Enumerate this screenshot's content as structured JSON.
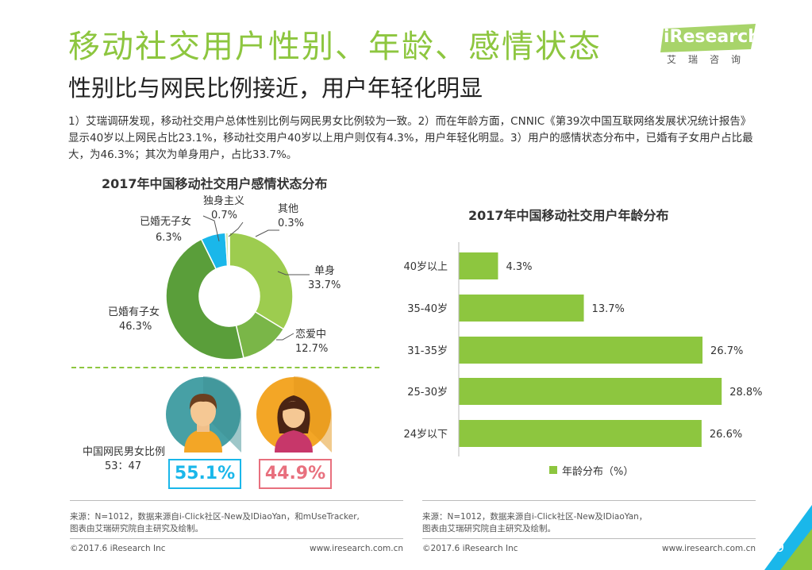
{
  "header": {
    "title": "移动社交用户性别、年龄、感情状态",
    "subtitle": "性别比与网民比例接近，用户年轻化明显",
    "intro": "1）艾瑞调研发现，移动社交用户总体性别比例与网民男女比例较为一致。2）而在年龄方面，CNNIC《第39次中国互联网络发展状况统计报告》显示40岁以上网民占比23.1%，移动社交用户40岁以上用户则仅有4.3%，用户年轻化明显。3）用户的感情状态分布中，已婚有子女用户占比最大，为46.3%；其次为单身用户，占比33.7%。"
  },
  "logo": {
    "text": "iResearch",
    "cn": "艾瑞咨询"
  },
  "gender": {
    "label": "中国网民男女比例",
    "ratio": "53：47",
    "male_pct": "55.1%",
    "female_pct": "44.9%",
    "male_color": "#1ab7ea",
    "female_color": "#e8707e"
  },
  "chart_data": [
    {
      "type": "pie",
      "title": "2017年中国移动社交用户感情状态分布",
      "categories": [
        "单身",
        "恋爱中",
        "已婚有子女",
        "已婚无子女",
        "独身主义",
        "其他"
      ],
      "values": [
        33.7,
        12.7,
        46.3,
        6.3,
        0.7,
        0.3
      ],
      "labels": [
        "33.7%",
        "12.7%",
        "46.3%",
        "6.3%",
        "0.7%",
        "0.3%"
      ],
      "colors": [
        "#9dcc4f",
        "#7ab648",
        "#5a9e3a",
        "#1ab7ea",
        "#cfe6a6",
        "#4d8f33"
      ]
    },
    {
      "type": "bar",
      "orientation": "horizontal",
      "title": "2017年中国移动社交用户年龄分布",
      "categories": [
        "40岁以上",
        "35-40岁",
        "31-35岁",
        "25-30岁",
        "24岁以下"
      ],
      "values": [
        4.3,
        13.7,
        26.7,
        28.8,
        26.6
      ],
      "labels": [
        "4.3%",
        "13.7%",
        "26.7%",
        "28.8%",
        "26.6%"
      ],
      "legend": "年龄分布（%）",
      "color": "#8dc63f"
    }
  ],
  "footer": {
    "left_source": "来源：N=1012，数据来源自i-Click社区-New及IDiaoYan，和mUseTracker,\n图表由艾瑞研究院自主研究及绘制。",
    "right_source": "来源：N=1012，数据来源自i-Click社区-New及IDiaoYan，\n图表由艾瑞研究院自主研究及绘制。",
    "copyright_left": "©2017.6 iResearch Inc",
    "url_left": "www.iresearch.com.cn",
    "copyright_right": "©2017.6 iResearch Inc",
    "url_right": "www.iresearch.com.cn",
    "page": "9"
  }
}
